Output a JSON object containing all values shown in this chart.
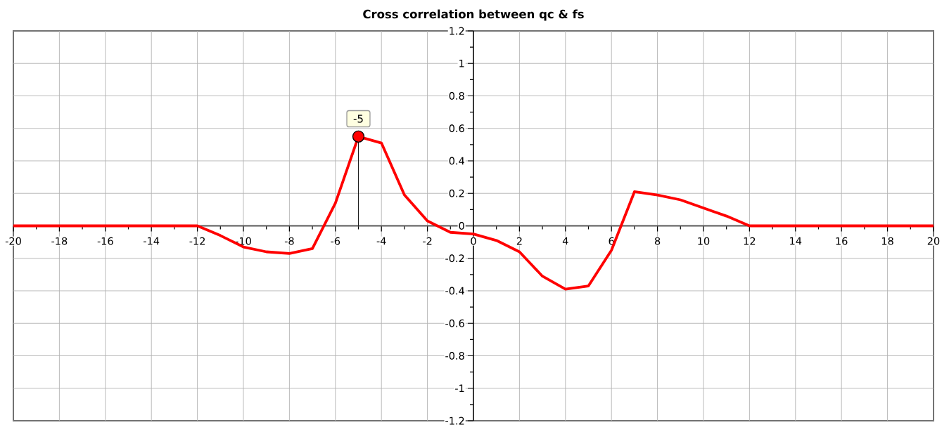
{
  "chart_data": {
    "type": "line",
    "title": "Cross correlation between qc & fs",
    "x": [
      -20,
      -19,
      -18,
      -17,
      -16,
      -15,
      -14,
      -13,
      -12,
      -11,
      -10,
      -9,
      -8,
      -7,
      -6,
      -5,
      -4,
      -3,
      -2,
      -1,
      0,
      1,
      2,
      3,
      4,
      5,
      6,
      7,
      8,
      9,
      10,
      11,
      12,
      13,
      14,
      15,
      16,
      17,
      18,
      19,
      20
    ],
    "series": [
      {
        "color": "#ff0000",
        "values": [
          0,
          0,
          0,
          0,
          0,
          0,
          0,
          0,
          0,
          -0.06,
          -0.13,
          -0.16,
          -0.17,
          -0.14,
          0.14,
          0.55,
          0.51,
          0.19,
          0.03,
          -0.04,
          -0.05,
          -0.09,
          -0.16,
          -0.31,
          -0.39,
          -0.37,
          -0.15,
          0.21,
          0.19,
          0.16,
          0.11,
          0.06,
          0,
          0,
          0,
          0,
          0,
          0,
          0,
          0,
          0
        ]
      },
      {
        "type": "lollipop",
        "color": "#ff0000",
        "marker": "circle",
        "x": [
          -5
        ],
        "values": [
          0.55
        ]
      }
    ],
    "annotations": [
      {
        "text": "-5",
        "x": -5,
        "y": 0.55
      }
    ],
    "xlim": [
      -20,
      20
    ],
    "ylim": [
      -1.2,
      1.2
    ],
    "xticks": [
      -20,
      {
        "value": -19,
        "label": null
      },
      -18,
      {
        "value": -17,
        "label": null
      },
      -16,
      {
        "value": -15,
        "label": null
      },
      -14,
      {
        "value": -13,
        "label": null
      },
      -12,
      {
        "value": -11,
        "label": null
      },
      -10,
      {
        "value": -9,
        "label": null
      },
      -8,
      {
        "value": -7,
        "label": null
      },
      -6,
      {
        "value": -5,
        "label": null
      },
      -4,
      {
        "value": -3,
        "label": null
      },
      -2,
      {
        "value": -1,
        "label": null
      },
      0,
      {
        "value": 1,
        "label": null
      },
      2,
      {
        "value": 3,
        "label": null
      },
      4,
      {
        "value": 5,
        "label": null
      },
      6,
      {
        "value": 7,
        "label": null
      },
      8,
      {
        "value": 9,
        "label": null
      },
      10,
      {
        "value": 11,
        "label": null
      },
      12,
      {
        "value": 13,
        "label": null
      },
      14,
      {
        "value": 15,
        "label": null
      },
      16,
      {
        "value": 17,
        "label": null
      },
      18,
      {
        "value": 19,
        "label": null
      },
      20
    ],
    "yticks": [
      -1.2,
      {
        "value": -1.1,
        "label": null
      },
      -1,
      {
        "value": -0.9,
        "label": null
      },
      -0.8,
      {
        "value": -0.7,
        "label": null
      },
      -0.6,
      {
        "value": -0.5,
        "label": null
      },
      -0.4,
      {
        "value": -0.3,
        "label": null
      },
      -0.2,
      {
        "value": -0.1,
        "label": null
      },
      0,
      {
        "value": 0.1,
        "label": null
      },
      0.2,
      {
        "value": 0.3,
        "label": null
      },
      0.4,
      {
        "value": 0.5,
        "label": null
      },
      0.6,
      {
        "value": 0.7,
        "label": null
      },
      0.8,
      {
        "value": 0.9,
        "label": null
      },
      1,
      {
        "value": 1.1,
        "label": null
      },
      1.2
    ],
    "grid": true,
    "line_style": "solid"
  }
}
